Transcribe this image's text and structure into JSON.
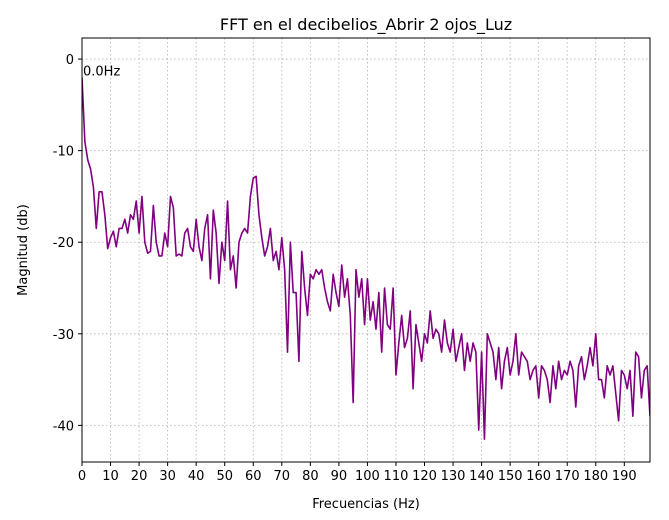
{
  "chart_data": {
    "type": "line",
    "title": "FFT en el decibelios_Abrir 2 ojos_Luz",
    "xlabel": "Frecuencias (Hz)",
    "ylabel": "Magnitud (db)",
    "annotation": "0.0Hz",
    "grid": true,
    "xlim": [
      0,
      199
    ],
    "ylim": [
      -44,
      2.3
    ],
    "xticks": [
      0,
      10,
      20,
      30,
      40,
      50,
      60,
      70,
      80,
      90,
      100,
      110,
      120,
      130,
      140,
      150,
      160,
      170,
      180,
      190
    ],
    "yticks": [
      -40,
      -30,
      -20,
      -10,
      0
    ],
    "x": [
      0,
      1,
      2,
      3,
      4,
      5,
      6,
      7,
      8,
      9,
      10,
      11,
      12,
      13,
      14,
      15,
      16,
      17,
      18,
      19,
      20,
      21,
      22,
      23,
      24,
      25,
      26,
      27,
      28,
      29,
      30,
      31,
      32,
      33,
      34,
      35,
      36,
      37,
      38,
      39,
      40,
      41,
      42,
      43,
      44,
      45,
      46,
      47,
      48,
      49,
      50,
      51,
      52,
      53,
      54,
      55,
      56,
      57,
      58,
      59,
      60,
      61,
      62,
      63,
      64,
      65,
      66,
      67,
      68,
      69,
      70,
      71,
      72,
      73,
      74,
      75,
      76,
      77,
      78,
      79,
      80,
      81,
      82,
      83,
      84,
      85,
      86,
      87,
      88,
      89,
      90,
      91,
      92,
      93,
      94,
      95,
      96,
      97,
      98,
      99,
      100,
      101,
      102,
      103,
      104,
      105,
      106,
      107,
      108,
      109,
      110,
      111,
      112,
      113,
      114,
      115,
      116,
      117,
      118,
      119,
      120,
      121,
      122,
      123,
      124,
      125,
      126,
      127,
      128,
      129,
      130,
      131,
      132,
      133,
      134,
      135,
      136,
      137,
      138,
      139,
      140,
      141,
      142,
      143,
      144,
      145,
      146,
      147,
      148,
      149,
      150,
      151,
      152,
      153,
      154,
      155,
      156,
      157,
      158,
      159,
      160,
      161,
      162,
      163,
      164,
      165,
      166,
      167,
      168,
      169,
      170,
      171,
      172,
      173,
      174,
      175,
      176,
      177,
      178,
      179,
      180,
      181,
      182,
      183,
      184,
      185,
      186,
      187,
      188,
      189,
      190,
      191,
      192,
      193,
      194,
      195,
      196,
      197,
      198,
      199
    ],
    "series": [
      {
        "name": "FFT",
        "color": "#800080",
        "values": [
          -2,
          -9,
          -11,
          -12,
          -14,
          -18.5,
          -14.5,
          -14.5,
          -17,
          -20.7,
          -19.5,
          -18.8,
          -20.5,
          -18.5,
          -18.5,
          -17.5,
          -19,
          -17,
          -17.5,
          -15.5,
          -19,
          -15,
          -20,
          -21.2,
          -21,
          -16,
          -20,
          -21.5,
          -21.5,
          -19,
          -20.5,
          -15,
          -16.2,
          -21.5,
          -21.3,
          -21.5,
          -19,
          -18.5,
          -20.5,
          -21,
          -17.5,
          -20.5,
          -22,
          -18.5,
          -17,
          -24,
          -16.5,
          -19,
          -24.5,
          -20,
          -22,
          -15.5,
          -23,
          -21.5,
          -25,
          -20,
          -19,
          -18.5,
          -19,
          -15,
          -13,
          -12.8,
          -17,
          -19.5,
          -21.5,
          -20.5,
          -18.5,
          -22,
          -21,
          -23,
          -19.5,
          -23,
          -32,
          -20,
          -25.5,
          -25.5,
          -33,
          -21,
          -25,
          -28,
          -23.5,
          -24,
          -23,
          -23.5,
          -23,
          -25,
          -26.5,
          -27.5,
          -23.5,
          -25.5,
          -27,
          -22.5,
          -26,
          -24,
          -28,
          -37.5,
          -23,
          -26,
          -24,
          -29,
          -24,
          -28.5,
          -26.5,
          -29.5,
          -25.5,
          -32,
          -25,
          -29,
          -29.5,
          -25,
          -34.5,
          -31,
          -28,
          -31.5,
          -30.5,
          -27.5,
          -36,
          -29,
          -31,
          -33,
          -30,
          -31,
          -27.5,
          -30.5,
          -29.5,
          -30,
          -32,
          -28.5,
          -31,
          -32,
          -29.5,
          -33,
          -31.5,
          -30,
          -34,
          -31,
          -33,
          -31,
          -32,
          -40.5,
          -32,
          -41.5,
          -30,
          -31,
          -32,
          -35,
          -31.5,
          -36,
          -33,
          -31.5,
          -34.5,
          -33,
          -30,
          -34.5,
          -32,
          -32.5,
          -33,
          -35,
          -34,
          -33.5,
          -37,
          -33.5,
          -34,
          -35,
          -37.5,
          -33.5,
          -36,
          -33,
          -35,
          -34,
          -34.5,
          -33,
          -34,
          -38,
          -33.5,
          -32.5,
          -35,
          -33.5,
          -31.5,
          -33.5,
          -30,
          -35,
          -35,
          -37,
          -33.5,
          -34.5,
          -33.5,
          -36.5,
          -39.5,
          -34,
          -34.5,
          -36,
          -34,
          -39,
          -32,
          -32.5,
          -37,
          -34,
          -33.5,
          -39
        ]
      }
    ]
  }
}
